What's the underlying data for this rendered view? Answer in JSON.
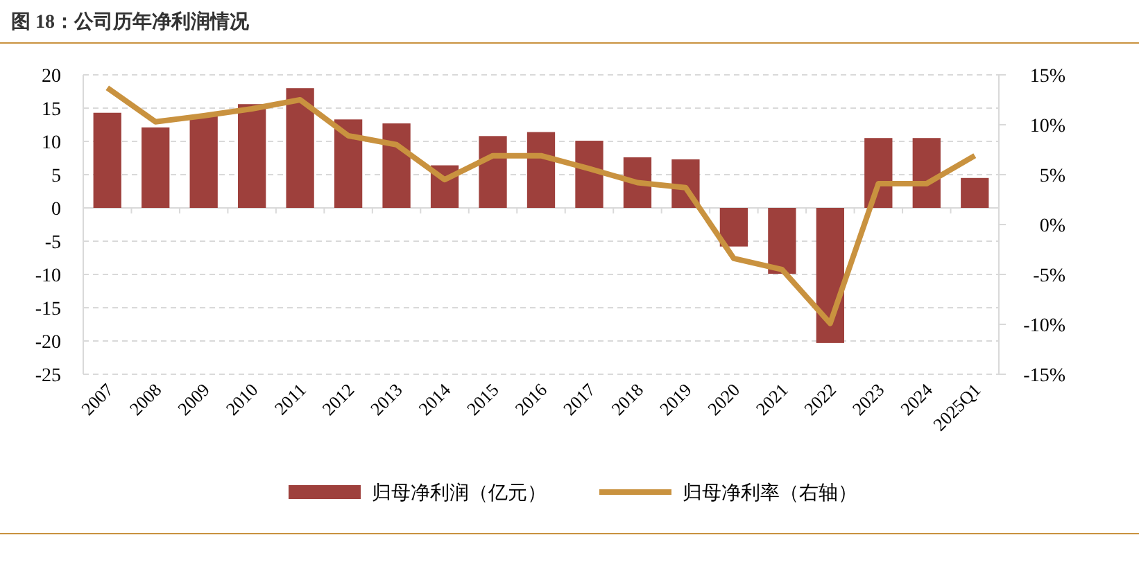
{
  "chart_data": {
    "type": "bar",
    "title": "图 18：公司历年净利润情况",
    "categories": [
      "2007",
      "2008",
      "2009",
      "2010",
      "2011",
      "2012",
      "2013",
      "2014",
      "2015",
      "2016",
      "2017",
      "2018",
      "2019",
      "2020",
      "2021",
      "2022",
      "2023",
      "2024",
      "2025Q1"
    ],
    "series": [
      {
        "name": "归母净利润（亿元）",
        "color": "#9e403c",
        "values": [
          14.3,
          12.1,
          13.8,
          15.6,
          18.0,
          13.3,
          12.7,
          6.4,
          10.8,
          11.4,
          10.1,
          7.6,
          7.3,
          -5.8,
          -9.9,
          -20.3,
          10.5,
          10.5,
          4.5
        ]
      },
      {
        "name": "归母净利率（右轴）",
        "type": "line",
        "axis": "y2",
        "color": "#c9923f",
        "values": [
          13.7,
          10.3,
          10.9,
          11.6,
          12.5,
          8.9,
          8.0,
          4.5,
          6.9,
          6.9,
          5.6,
          4.2,
          3.7,
          -3.4,
          -4.5,
          -9.9,
          4.1,
          4.1,
          6.9
        ]
      }
    ],
    "ylim": [
      -25,
      20
    ],
    "yticks": [
      -25,
      -20,
      -15,
      -10,
      -5,
      0,
      5,
      10,
      15,
      20
    ],
    "y2lim": [
      -15,
      15
    ],
    "y2ticks": [
      {
        "value": -15,
        "label": "-15%"
      },
      {
        "value": -10,
        "label": "-10%"
      },
      {
        "value": -5,
        "label": "-5%"
      },
      {
        "value": 0,
        "label": "0%"
      },
      {
        "value": 5,
        "label": "5%"
      },
      {
        "value": 10,
        "label": "10%"
      },
      {
        "value": 15,
        "label": "15%"
      }
    ],
    "grid": "y",
    "legend": "bottom"
  }
}
